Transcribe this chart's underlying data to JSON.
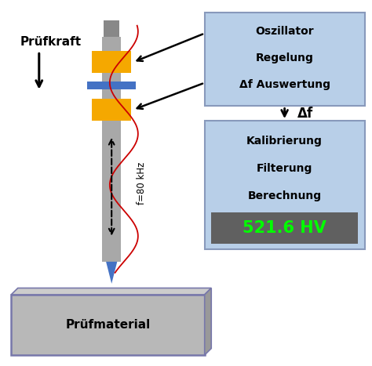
{
  "bg_color": "#ffffff",
  "fig_width": 4.74,
  "fig_height": 4.67,
  "dpi": 100,
  "pruefkraft_label": "Prüfkraft",
  "pruefmaterial_label": "Prüfmaterial",
  "freq_label": "f=80 kHz",
  "delta_f_label": "Δf",
  "box1_lines": [
    "Oszillator",
    "Regelung",
    "Δf Auswertung"
  ],
  "box2_lines": [
    "Kalibrierung",
    "Filterung",
    "Berechnung"
  ],
  "result_label": "521.6 HV",
  "box1_color": "#b8cfe8",
  "box2_color": "#b8cfe8",
  "result_bg": "#606060",
  "result_color": "#00ff00",
  "rod_color": "#a8a8a8",
  "rod_dark": "#888888",
  "yellow_color": "#f5a800",
  "blue_color": "#4472c4",
  "material_color": "#b8b8b8",
  "material_edge": "#7777aa",
  "wave_color": "#cc0000",
  "arrow_color": "#000000",
  "box_edge_color": "#8899bb"
}
